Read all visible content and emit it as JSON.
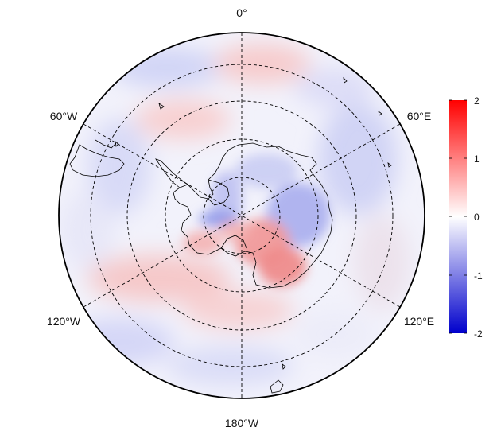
{
  "map": {
    "projection": "south polar stereographic",
    "longitude_labels": {
      "top": "0°",
      "upper_left": "60°W",
      "upper_right": "60°E",
      "lower_left": "120°W",
      "lower_right": "120°E",
      "bottom": "180°W"
    },
    "graticule": {
      "style": "dashed",
      "latitude_circles": 4,
      "meridian_step_deg": 60
    },
    "coastline_color": "#000000"
  },
  "colorbar": {
    "ticks": [
      "2",
      "1",
      "0",
      "-1",
      "-2"
    ],
    "min": -2,
    "max": 2,
    "colors": {
      "high": "#ff0000",
      "mid": "#ffffff",
      "low": "#0000cc"
    }
  }
}
